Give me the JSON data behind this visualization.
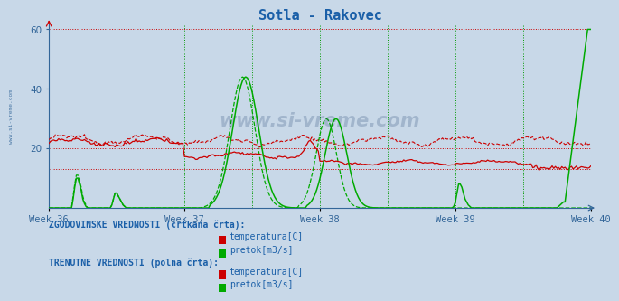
{
  "title": "Sotla - Rakovec",
  "title_color": "#1a5fa8",
  "fig_bg_color": "#c8d8e8",
  "plot_bg_color": "#c8d8e8",
  "xlim": [
    0,
    336
  ],
  "ylim": [
    0,
    62
  ],
  "yticks": [
    20,
    40,
    60
  ],
  "xtick_labels": [
    "Week 36",
    "Week 37",
    "Week 38",
    "Week 39",
    "Week 40"
  ],
  "xtick_positions": [
    0,
    84,
    168,
    252,
    336
  ],
  "hgrid_color": "#cc0000",
  "vgrid_color": "#009900",
  "hgrid_values": [
    13,
    20,
    40,
    60
  ],
  "vgrid_positions": [
    0,
    42,
    84,
    126,
    168,
    210,
    252,
    294,
    336
  ],
  "temp_color": "#cc0000",
  "flow_color": "#00aa00",
  "sidebar_color": "#336699",
  "legend_label_hist": "ZGODOVINSKE VREDNOSTI (črtkana črta):",
  "legend_label_curr": "TRENUTNE VREDNOSTI (polna črta):",
  "legend_temp": "temperatura[C]",
  "legend_flow": "pretok[m3/s]"
}
